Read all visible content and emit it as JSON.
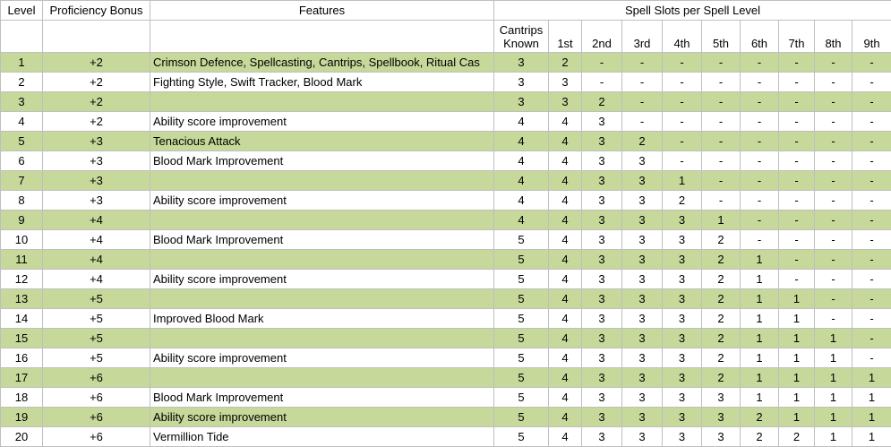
{
  "headers": {
    "level": "Level",
    "proficiency": "Proficiency Bonus",
    "features": "Features",
    "spell_slots": "Spell Slots per Spell Level",
    "cantrips": "Cantrips\nKnown",
    "slot_levels": [
      "1st",
      "2nd",
      "3rd",
      "4th",
      "5th",
      "6th",
      "7th",
      "8th",
      "9th"
    ]
  },
  "rows": [
    {
      "level": "1",
      "prof": "+2",
      "features": "Crimson Defence, Spellcasting, Cantrips, Spellbook, Ritual Cas",
      "cantrips": "3",
      "slots": [
        "2",
        "-",
        "-",
        "-",
        "-",
        "-",
        "-",
        "-",
        "-"
      ]
    },
    {
      "level": "2",
      "prof": "+2",
      "features": "Fighting Style, Swift Tracker, Blood Mark",
      "cantrips": "3",
      "slots": [
        "3",
        "-",
        "-",
        "-",
        "-",
        "-",
        "-",
        "-",
        "-"
      ]
    },
    {
      "level": "3",
      "prof": "+2",
      "features": "",
      "cantrips": "3",
      "slots": [
        "3",
        "2",
        "-",
        "-",
        "-",
        "-",
        "-",
        "-",
        "-"
      ]
    },
    {
      "level": "4",
      "prof": "+2",
      "features": "Ability score improvement",
      "cantrips": "4",
      "slots": [
        "4",
        "3",
        "-",
        "-",
        "-",
        "-",
        "-",
        "-",
        "-"
      ]
    },
    {
      "level": "5",
      "prof": "+3",
      "features": "Tenacious Attack",
      "cantrips": "4",
      "slots": [
        "4",
        "3",
        "2",
        "-",
        "-",
        "-",
        "-",
        "-",
        "-"
      ]
    },
    {
      "level": "6",
      "prof": "+3",
      "features": "Blood Mark Improvement",
      "cantrips": "4",
      "slots": [
        "4",
        "3",
        "3",
        "-",
        "-",
        "-",
        "-",
        "-",
        "-"
      ]
    },
    {
      "level": "7",
      "prof": "+3",
      "features": "",
      "cantrips": "4",
      "slots": [
        "4",
        "3",
        "3",
        "1",
        "-",
        "-",
        "-",
        "-",
        "-"
      ]
    },
    {
      "level": "8",
      "prof": "+3",
      "features": "Ability score improvement",
      "cantrips": "4",
      "slots": [
        "4",
        "3",
        "3",
        "2",
        "-",
        "-",
        "-",
        "-",
        "-"
      ]
    },
    {
      "level": "9",
      "prof": "+4",
      "features": "",
      "cantrips": "4",
      "slots": [
        "4",
        "3",
        "3",
        "3",
        "1",
        "-",
        "-",
        "-",
        "-"
      ]
    },
    {
      "level": "10",
      "prof": "+4",
      "features": "Blood Mark Improvement",
      "cantrips": "5",
      "slots": [
        "4",
        "3",
        "3",
        "3",
        "2",
        "-",
        "-",
        "-",
        "-"
      ]
    },
    {
      "level": "11",
      "prof": "+4",
      "features": "",
      "cantrips": "5",
      "slots": [
        "4",
        "3",
        "3",
        "3",
        "2",
        "1",
        "-",
        "-",
        "-"
      ]
    },
    {
      "level": "12",
      "prof": "+4",
      "features": "Ability score improvement",
      "cantrips": "5",
      "slots": [
        "4",
        "3",
        "3",
        "3",
        "2",
        "1",
        "-",
        "-",
        "-"
      ]
    },
    {
      "level": "13",
      "prof": "+5",
      "features": "",
      "cantrips": "5",
      "slots": [
        "4",
        "3",
        "3",
        "3",
        "2",
        "1",
        "1",
        "-",
        "-"
      ]
    },
    {
      "level": "14",
      "prof": "+5",
      "features": "Improved Blood Mark",
      "cantrips": "5",
      "slots": [
        "4",
        "3",
        "3",
        "3",
        "2",
        "1",
        "1",
        "-",
        "-"
      ]
    },
    {
      "level": "15",
      "prof": "+5",
      "features": "",
      "cantrips": "5",
      "slots": [
        "4",
        "3",
        "3",
        "3",
        "2",
        "1",
        "1",
        "1",
        "-"
      ]
    },
    {
      "level": "16",
      "prof": "+5",
      "features": "Ability score improvement",
      "cantrips": "5",
      "slots": [
        "4",
        "3",
        "3",
        "3",
        "2",
        "1",
        "1",
        "1",
        "-"
      ]
    },
    {
      "level": "17",
      "prof": "+6",
      "features": "",
      "cantrips": "5",
      "slots": [
        "4",
        "3",
        "3",
        "3",
        "2",
        "1",
        "1",
        "1",
        "1"
      ]
    },
    {
      "level": "18",
      "prof": "+6",
      "features": "Blood Mark Improvement",
      "cantrips": "5",
      "slots": [
        "4",
        "3",
        "3",
        "3",
        "3",
        "1",
        "1",
        "1",
        "1"
      ]
    },
    {
      "level": "19",
      "prof": "+6",
      "features": "Ability score improvement",
      "cantrips": "5",
      "slots": [
        "4",
        "3",
        "3",
        "3",
        "3",
        "2",
        "1",
        "1",
        "1"
      ]
    },
    {
      "level": "20",
      "prof": "+6",
      "features": "Vermillion Tide",
      "cantrips": "5",
      "slots": [
        "4",
        "3",
        "3",
        "3",
        "3",
        "2",
        "2",
        "1",
        "1"
      ]
    }
  ],
  "colors": {
    "band": "#c6d89a",
    "grid": "#bfbfbf"
  }
}
